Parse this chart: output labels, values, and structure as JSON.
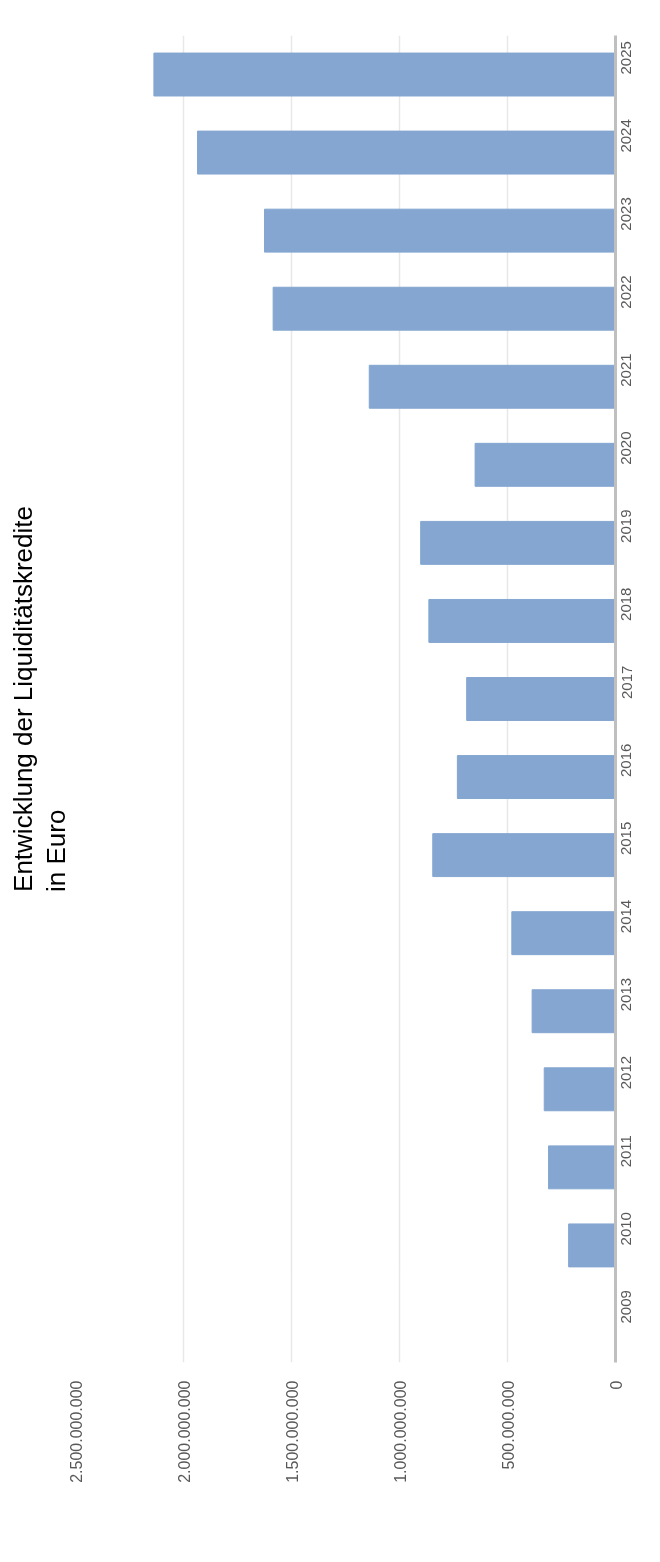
{
  "chart_data": {
    "type": "bar",
    "orientation": "horizontal",
    "title": "Entwicklung der Liquiditätskredite\nin Euro",
    "categories": [
      "2025",
      "2024",
      "2023",
      "2022",
      "2021",
      "2020",
      "2019",
      "2018",
      "2017",
      "2016",
      "2015",
      "2014",
      "2013",
      "2012",
      "2011",
      "2010",
      "2009"
    ],
    "values": [
      2137000000,
      1935000000,
      1625000000,
      1585000000,
      1140000000,
      650000000,
      902000000,
      864000000,
      689000000,
      732000000,
      846000000,
      480000000,
      386000000,
      330000000,
      310000000,
      217000000,
      null
    ],
    "color": "#84a6d0",
    "xlim": [
      2500000000,
      0
    ],
    "xticks": [
      {
        "value": 2500000000,
        "label": "2.500.000.000"
      },
      {
        "value": 2000000000,
        "label": "2.000.000.000"
      },
      {
        "value": 1500000000,
        "label": "1.500.000.000"
      },
      {
        "value": 1000000000,
        "label": "1.000.000.000"
      },
      {
        "value": 500000000,
        "label": "500.000.000"
      },
      0
    ],
    "grid": "x"
  }
}
